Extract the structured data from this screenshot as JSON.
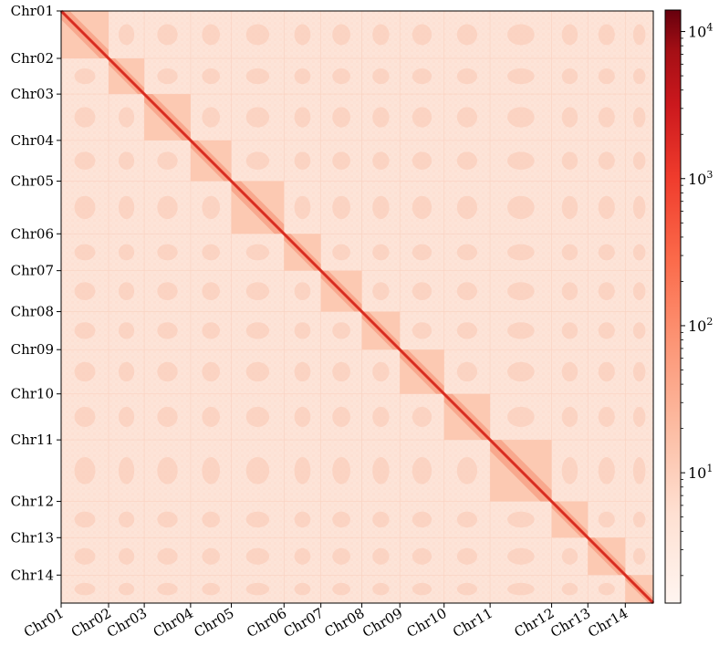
{
  "chart_data": {
    "type": "heatmap",
    "title": "",
    "xlabel": "",
    "ylabel": "",
    "chromosomes": [
      "Chr01",
      "Chr02",
      "Chr03",
      "Chr04",
      "Chr05",
      "Chr06",
      "Chr07",
      "Chr08",
      "Chr09",
      "Chr10",
      "Chr11",
      "Chr12",
      "Chr13",
      "Chr14"
    ],
    "boundaries_fraction": [
      0,
      0.0801,
      0.1404,
      0.2186,
      0.2874,
      0.3764,
      0.4386,
      0.5078,
      0.572,
      0.6467,
      0.7244,
      0.8283,
      0.8895,
      0.9527,
      1
    ],
    "colorbar": {
      "scale": "log",
      "colormap": "Reds",
      "ticks": [
        10,
        100,
        1000,
        10000
      ],
      "tick_labels": [
        {
          "base": "10",
          "exp": "1"
        },
        {
          "base": "10",
          "exp": "2"
        },
        {
          "base": "10",
          "exp": "3"
        },
        {
          "base": "10",
          "exp": "4"
        }
      ],
      "min": 1.3,
      "max": 14000
    },
    "colors": {
      "background": "#fde6dc",
      "diagonal": "#e3392a",
      "block": "#f9b59a",
      "colorbar_low": "#fff5f0",
      "colorbar_mid": "#fb6a4a",
      "colorbar_high": "#67000d"
    },
    "grid": false,
    "legend": "none"
  }
}
